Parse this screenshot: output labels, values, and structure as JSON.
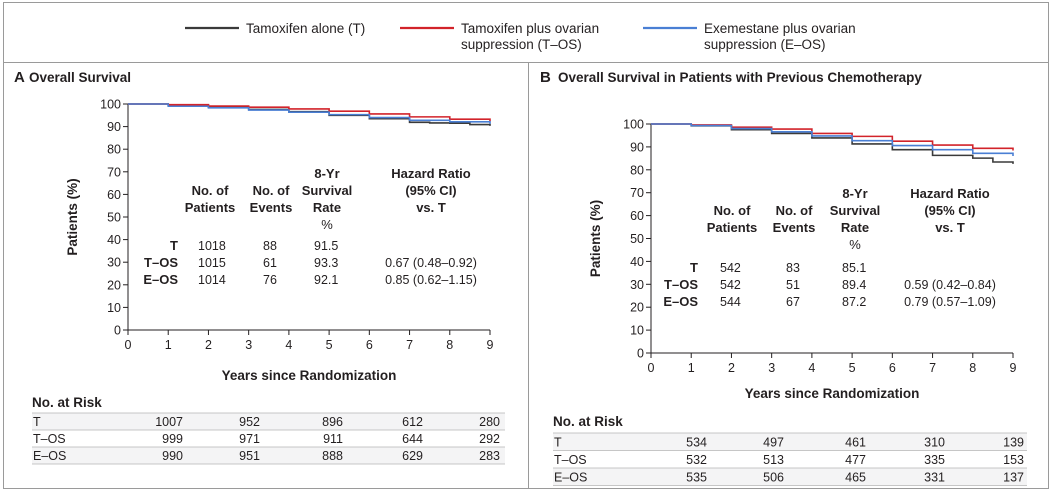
{
  "legend": [
    {
      "label_lines": [
        "Tamoxifen alone (T)"
      ],
      "color": "#3a3a3a"
    },
    {
      "label_lines": [
        "Tamoxifen plus ovarian",
        "suppression (T–OS)"
      ],
      "color": "#d2232a"
    },
    {
      "label_lines": [
        "Exemestane plus ovarian",
        "suppression (E–OS)"
      ],
      "color": "#4a7fd4"
    }
  ],
  "panels": {
    "a": {
      "letter": "A",
      "title": "Overall Survival",
      "ylabel": "Patients (%)",
      "xlabel": "Years since Randomization",
      "xticks": [
        "0",
        "1",
        "2",
        "3",
        "4",
        "5",
        "6",
        "7",
        "8",
        "9"
      ],
      "yticks": [
        "0",
        "10",
        "20",
        "30",
        "40",
        "50",
        "60",
        "70",
        "80",
        "90",
        "100"
      ],
      "headers": {
        "patients": [
          "No. of",
          "Patients"
        ],
        "events": [
          "No. of",
          "Events"
        ],
        "rate": [
          "8-Yr",
          "Survival",
          "Rate",
          "%"
        ],
        "hr": [
          "Hazard Ratio",
          "(95% CI)",
          "vs. T"
        ]
      },
      "rows": [
        {
          "group": "T",
          "patients": "1018",
          "events": "88",
          "rate": "91.5",
          "hr": ""
        },
        {
          "group": "T–OS",
          "patients": "1015",
          "events": "61",
          "rate": "93.3",
          "hr": "0.67 (0.48–0.92)"
        },
        {
          "group": "E–OS",
          "patients": "1014",
          "events": "76",
          "rate": "92.1",
          "hr": "0.85 (0.62–1.15)"
        }
      ],
      "risk_title": "No. at Risk",
      "risk": [
        {
          "group": "T",
          "values": [
            "1007",
            "952",
            "896",
            "612",
            "280"
          ]
        },
        {
          "group": "T–OS",
          "values": [
            "999",
            "971",
            "911",
            "644",
            "292"
          ]
        },
        {
          "group": "E–OS",
          "values": [
            "990",
            "951",
            "888",
            "629",
            "283"
          ]
        }
      ]
    },
    "b": {
      "letter": "B",
      "title": "Overall Survival in Patients with Previous Chemotherapy",
      "ylabel": "Patients (%)",
      "xlabel": "Years since Randomization",
      "xticks": [
        "0",
        "1",
        "2",
        "3",
        "4",
        "5",
        "6",
        "7",
        "8",
        "9"
      ],
      "yticks": [
        "0",
        "10",
        "20",
        "30",
        "40",
        "50",
        "60",
        "70",
        "80",
        "90",
        "100"
      ],
      "headers": {
        "patients": [
          "No. of",
          "Patients"
        ],
        "events": [
          "No. of",
          "Events"
        ],
        "rate": [
          "8-Yr",
          "Survival",
          "Rate",
          "%"
        ],
        "hr": [
          "Hazard Ratio",
          "(95% CI)",
          "vs. T"
        ]
      },
      "rows": [
        {
          "group": "T",
          "patients": "542",
          "events": "83",
          "rate": "85.1",
          "hr": ""
        },
        {
          "group": "T–OS",
          "patients": "542",
          "events": "51",
          "rate": "89.4",
          "hr": "0.59 (0.42–0.84)"
        },
        {
          "group": "E–OS",
          "patients": "544",
          "events": "67",
          "rate": "87.2",
          "hr": "0.79 (0.57–1.09)"
        }
      ],
      "risk_title": "No. at Risk",
      "risk": [
        {
          "group": "T",
          "values": [
            "534",
            "497",
            "461",
            "310",
            "139"
          ]
        },
        {
          "group": "T–OS",
          "values": [
            "532",
            "513",
            "477",
            "335",
            "153"
          ]
        },
        {
          "group": "E–OS",
          "values": [
            "535",
            "506",
            "465",
            "331",
            "137"
          ]
        }
      ]
    }
  },
  "chart_data": [
    {
      "type": "line",
      "title": "Overall Survival",
      "xlabel": "Years since Randomization",
      "ylabel": "Patients (%)",
      "xlim": [
        0,
        9
      ],
      "ylim": [
        0,
        100
      ],
      "series": [
        {
          "name": "Tamoxifen alone (T)",
          "color": "#3a3a3a",
          "x": [
            0,
            1,
            2,
            3,
            4,
            5,
            6,
            7,
            7.5,
            8,
            8.5,
            9
          ],
          "y": [
            100,
            99.5,
            98.6,
            97.6,
            96.6,
            95.0,
            93.5,
            91.9,
            91.6,
            91.5,
            90.9,
            90.3
          ]
        },
        {
          "name": "Tamoxifen plus ovarian suppression (T–OS)",
          "color": "#d2232a",
          "x": [
            0,
            1,
            2,
            3,
            4,
            5,
            6,
            7,
            8,
            9
          ],
          "y": [
            100,
            99.7,
            99.1,
            98.6,
            97.8,
            96.8,
            95.6,
            94.3,
            93.3,
            92.3
          ]
        },
        {
          "name": "Exemestane plus ovarian suppression (E–OS)",
          "color": "#4a7fd4",
          "x": [
            0,
            1,
            2,
            3,
            4,
            5,
            6,
            7,
            8,
            9
          ],
          "y": [
            100,
            99.0,
            98.3,
            97.3,
            96.4,
            95.3,
            94.0,
            92.8,
            92.1,
            91.2
          ]
        }
      ]
    },
    {
      "type": "line",
      "title": "Overall Survival in Patients with Previous Chemotherapy",
      "xlabel": "Years since Randomization",
      "ylabel": "Patients (%)",
      "xlim": [
        0,
        9
      ],
      "ylim": [
        0,
        100
      ],
      "series": [
        {
          "name": "Tamoxifen alone (T)",
          "color": "#3a3a3a",
          "x": [
            0,
            1,
            2,
            3,
            4,
            5,
            6,
            7,
            8,
            8.5,
            9
          ],
          "y": [
            100,
            99.2,
            97.5,
            95.9,
            93.9,
            91.3,
            88.8,
            86.3,
            85.1,
            83.4,
            82.6
          ]
        },
        {
          "name": "Tamoxifen plus ovarian suppression (T–OS)",
          "color": "#d2232a",
          "x": [
            0,
            1,
            2,
            3,
            4,
            5,
            6,
            7,
            8,
            9
          ],
          "y": [
            100,
            99.6,
            98.6,
            97.8,
            95.9,
            94.6,
            92.5,
            90.8,
            89.4,
            88.4
          ]
        },
        {
          "name": "Exemestane plus ovarian suppression (E–OS)",
          "color": "#4a7fd4",
          "x": [
            0,
            1,
            2,
            3,
            4,
            5,
            6,
            7,
            8,
            9
          ],
          "y": [
            100,
            99.3,
            98.0,
            96.6,
            94.8,
            92.7,
            90.6,
            88.8,
            87.2,
            86.0
          ]
        }
      ]
    }
  ]
}
